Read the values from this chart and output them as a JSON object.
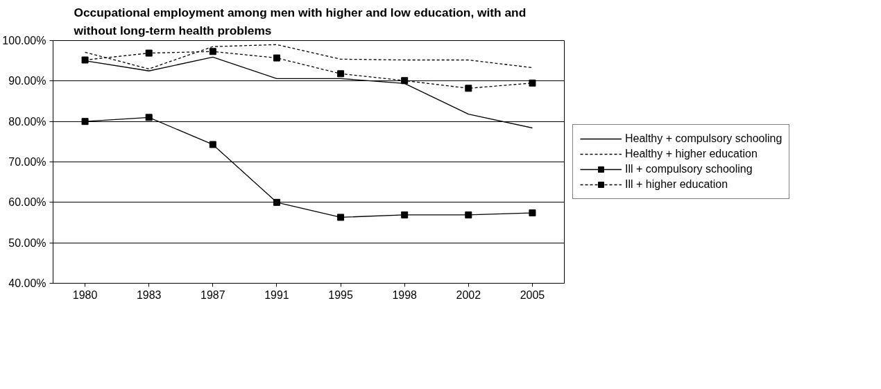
{
  "chart_data": {
    "type": "line",
    "title": "Occupational employment among men with higher and low education, with and without long-term health problems",
    "categories": [
      "1980",
      "1983",
      "1987",
      "1991",
      "1995",
      "1998",
      "2002",
      "2005"
    ],
    "series": [
      {
        "name": "Healthy + compulsory schooling",
        "color": "#000000",
        "line_style": "solid",
        "marker": "none",
        "values": [
          95.0,
          92.5,
          95.9,
          90.6,
          90.6,
          89.4,
          81.8,
          78.4
        ]
      },
      {
        "name": "Healthy + higher education",
        "color": "#000000",
        "line_style": "dashed",
        "marker": "none",
        "values": [
          97.1,
          93.0,
          98.5,
          99.0,
          95.4,
          95.2,
          95.2,
          93.3
        ]
      },
      {
        "name": "Ill + compulsory schooling",
        "color": "#000000",
        "line_style": "solid",
        "marker": "square",
        "values": [
          80.0,
          81.0,
          74.3,
          60.0,
          56.3,
          56.9,
          56.9,
          57.4
        ]
      },
      {
        "name": "Ill + higher education",
        "color": "#000000",
        "line_style": "dashed",
        "marker": "square",
        "values": [
          95.2,
          96.9,
          97.3,
          95.7,
          91.8,
          90.1,
          88.2,
          89.5
        ]
      }
    ],
    "ylim": [
      40,
      100
    ],
    "yticks": [
      {
        "value": 40,
        "label": "40.00%"
      },
      {
        "value": 50,
        "label": "50.00%"
      },
      {
        "value": 60,
        "label": "60.00%"
      },
      {
        "value": 70,
        "label": "70.00%"
      },
      {
        "value": 80,
        "label": "80.00%"
      },
      {
        "value": 90,
        "label": "90.00%"
      },
      {
        "value": 100,
        "label": "100.00%"
      }
    ],
    "grid": "y",
    "legend": "right"
  }
}
